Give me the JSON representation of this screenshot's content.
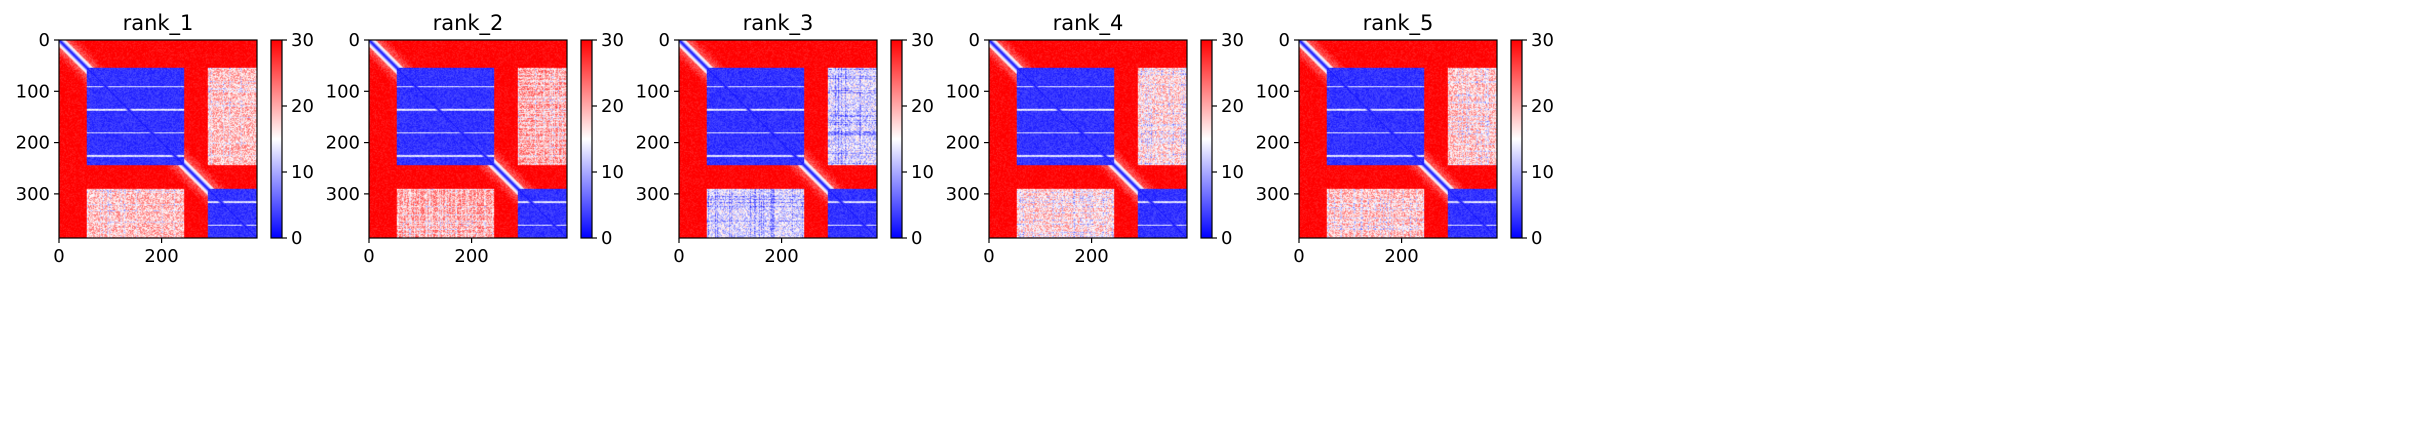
{
  "chart_data": [
    {
      "type": "heatmap",
      "title": "rank_1",
      "n": 386,
      "xlim": [
        0,
        386
      ],
      "ylim": [
        0,
        386
      ],
      "xticks": [
        0,
        200
      ],
      "yticks": [
        0,
        100,
        200,
        300
      ],
      "colorbar": {
        "min": 0,
        "max": 30,
        "ticks": [
          0,
          10,
          20,
          30
        ],
        "colormap": "bwr"
      },
      "domains": [
        [
          0,
          55
        ],
        [
          55,
          245
        ],
        [
          245,
          290
        ],
        [
          290,
          386
        ]
      ],
      "blocks": [
        {
          "rows": [
            55,
            245
          ],
          "cols": [
            55,
            245
          ],
          "level": 3
        },
        {
          "rows": [
            290,
            386
          ],
          "cols": [
            290,
            386
          ],
          "level": 3
        },
        {
          "rows": [
            55,
            245
          ],
          "cols": [
            290,
            386
          ],
          "level": 19
        },
        {
          "rows": [
            290,
            386
          ],
          "cols": [
            55,
            245
          ],
          "level": 19
        }
      ]
    },
    {
      "type": "heatmap",
      "title": "rank_2",
      "n": 386,
      "xlim": [
        0,
        386
      ],
      "ylim": [
        0,
        386
      ],
      "xticks": [
        0,
        200
      ],
      "yticks": [
        0,
        100,
        200,
        300
      ],
      "colorbar": {
        "min": 0,
        "max": 30,
        "ticks": [
          0,
          10,
          20,
          30
        ],
        "colormap": "bwr"
      },
      "domains": [
        [
          0,
          55
        ],
        [
          55,
          245
        ],
        [
          245,
          290
        ],
        [
          290,
          386
        ]
      ],
      "blocks": [
        {
          "rows": [
            55,
            245
          ],
          "cols": [
            55,
            245
          ],
          "level": 3
        },
        {
          "rows": [
            290,
            386
          ],
          "cols": [
            290,
            386
          ],
          "level": 3
        },
        {
          "rows": [
            55,
            245
          ],
          "cols": [
            290,
            386
          ],
          "level": 21
        },
        {
          "rows": [
            290,
            386
          ],
          "cols": [
            55,
            245
          ],
          "level": 21
        }
      ]
    },
    {
      "type": "heatmap",
      "title": "rank_3",
      "n": 386,
      "xlim": [
        0,
        386
      ],
      "ylim": [
        0,
        386
      ],
      "xticks": [
        0,
        200
      ],
      "yticks": [
        0,
        100,
        200,
        300
      ],
      "colorbar": {
        "min": 0,
        "max": 30,
        "ticks": [
          0,
          10,
          20,
          30
        ],
        "colormap": "bwr"
      },
      "domains": [
        [
          0,
          55
        ],
        [
          55,
          245
        ],
        [
          245,
          290
        ],
        [
          290,
          386
        ]
      ],
      "blocks": [
        {
          "rows": [
            55,
            245
          ],
          "cols": [
            55,
            245
          ],
          "level": 3
        },
        {
          "rows": [
            290,
            386
          ],
          "cols": [
            290,
            386
          ],
          "level": 3
        },
        {
          "rows": [
            55,
            245
          ],
          "cols": [
            290,
            386
          ],
          "level": 13
        },
        {
          "rows": [
            290,
            386
          ],
          "cols": [
            55,
            245
          ],
          "level": 13
        }
      ]
    },
    {
      "type": "heatmap",
      "title": "rank_4",
      "n": 386,
      "xlim": [
        0,
        386
      ],
      "ylim": [
        0,
        386
      ],
      "xticks": [
        0,
        200
      ],
      "yticks": [
        0,
        100,
        200,
        300
      ],
      "colorbar": {
        "min": 0,
        "max": 30,
        "ticks": [
          0,
          10,
          20,
          30
        ],
        "colormap": "bwr"
      },
      "domains": [
        [
          0,
          55
        ],
        [
          55,
          245
        ],
        [
          245,
          290
        ],
        [
          290,
          386
        ]
      ],
      "blocks": [
        {
          "rows": [
            55,
            245
          ],
          "cols": [
            55,
            245
          ],
          "level": 3
        },
        {
          "rows": [
            290,
            386
          ],
          "cols": [
            290,
            386
          ],
          "level": 3
        },
        {
          "rows": [
            55,
            245
          ],
          "cols": [
            290,
            386
          ],
          "level": 18
        },
        {
          "rows": [
            290,
            386
          ],
          "cols": [
            55,
            245
          ],
          "level": 18
        }
      ]
    },
    {
      "type": "heatmap",
      "title": "rank_5",
      "n": 386,
      "xlim": [
        0,
        386
      ],
      "ylim": [
        0,
        386
      ],
      "xticks": [
        0,
        200
      ],
      "yticks": [
        0,
        100,
        200,
        300
      ],
      "colorbar": {
        "min": 0,
        "max": 30,
        "ticks": [
          0,
          10,
          20,
          30
        ],
        "colormap": "bwr"
      },
      "domains": [
        [
          0,
          55
        ],
        [
          55,
          245
        ],
        [
          245,
          290
        ],
        [
          290,
          386
        ]
      ],
      "blocks": [
        {
          "rows": [
            55,
            245
          ],
          "cols": [
            55,
            245
          ],
          "level": 3
        },
        {
          "rows": [
            290,
            386
          ],
          "cols": [
            290,
            386
          ],
          "level": 3
        },
        {
          "rows": [
            55,
            245
          ],
          "cols": [
            290,
            386
          ],
          "level": 19
        },
        {
          "rows": [
            290,
            386
          ],
          "cols": [
            55,
            245
          ],
          "level": 19
        }
      ]
    }
  ]
}
